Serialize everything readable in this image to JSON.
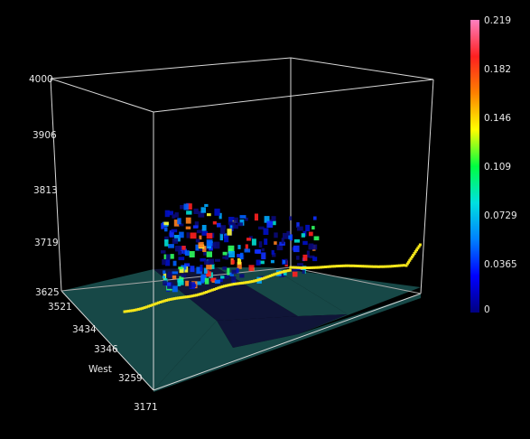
{
  "vertical_axis": {
    "ticks": [
      "4000",
      "3906",
      "3813",
      "3719",
      "3625"
    ]
  },
  "horizontal_axis": {
    "title": "West",
    "ticks": [
      "3521",
      "3434",
      "3346",
      "3259",
      "3171"
    ]
  },
  "colorbar": {
    "ticks": [
      "0.219",
      "0.182",
      "0.146",
      "0.109",
      "0.0729",
      "0.0365",
      "0"
    ],
    "stops": [
      "#000080",
      "#0000ff",
      "#0080ff",
      "#00e0e0",
      "#00ff40",
      "#ffff00",
      "#ff8000",
      "#ff2020",
      "#ff80c0"
    ]
  },
  "colors": {
    "background": "#000000",
    "box_edge": "#d8d8d8",
    "ground_light": "#174847",
    "ground_dark": "#101538",
    "track": "#f5e61a"
  }
}
